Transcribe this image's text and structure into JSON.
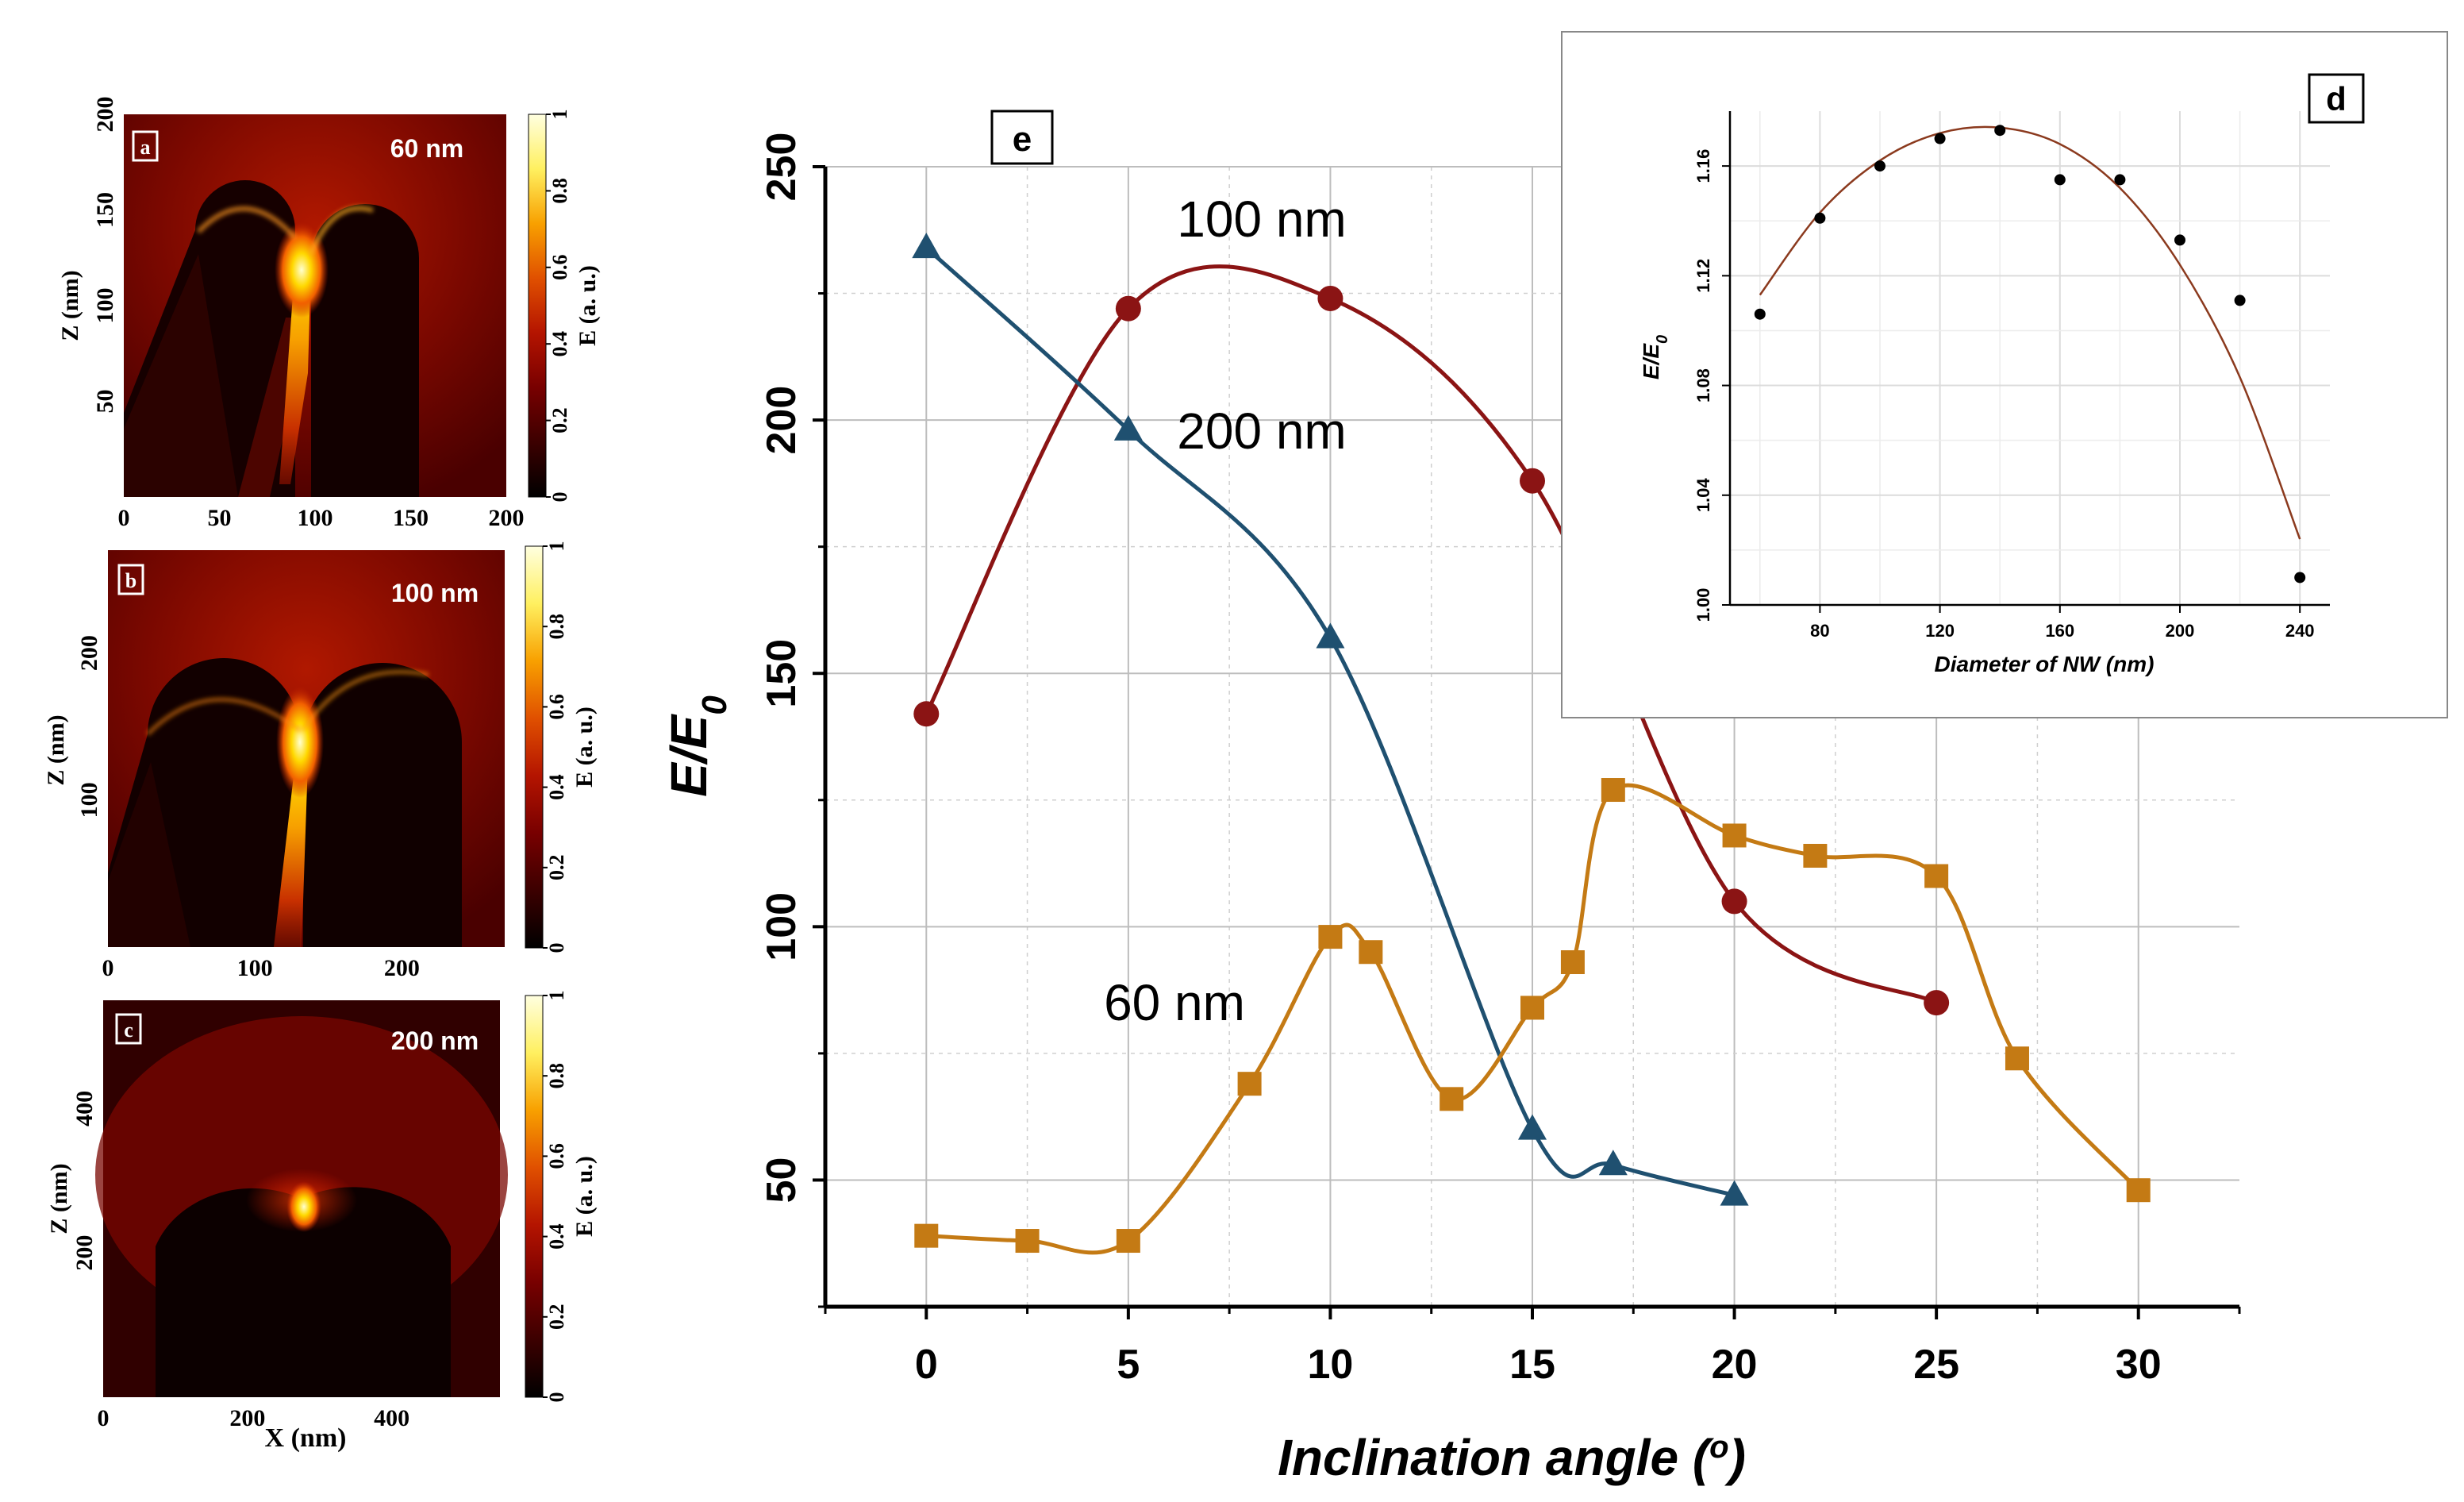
{
  "figure": {
    "panels": [
      {
        "id": "a",
        "label": "a",
        "size_label": "60 nm",
        "x_ticks": [
          "0",
          "50",
          "100",
          "150",
          "200"
        ],
        "z_ticks": [
          "50",
          "100",
          "150",
          "200"
        ],
        "z_label": "Z (nm)",
        "colorbar_ticks": [
          "0",
          "0.2",
          "0.4",
          "0.6",
          "0.8",
          "1"
        ],
        "colorbar_label": "E (a. u.)"
      },
      {
        "id": "b",
        "label": "b",
        "size_label": "100 nm",
        "x_ticks": [
          "0",
          "100",
          "200"
        ],
        "z_ticks": [
          "100",
          "200"
        ],
        "z_label": "Z (nm)",
        "colorbar_ticks": [
          "0",
          "0.2",
          "0.4",
          "0.6",
          "0.8",
          "1"
        ],
        "colorbar_label": "E (a. u.)"
      },
      {
        "id": "c",
        "label": "c",
        "size_label": "200 nm",
        "x_ticks": [
          "0",
          "200",
          "400"
        ],
        "z_ticks": [
          "200",
          "400"
        ],
        "z_label": "Z (nm)",
        "colorbar_ticks": [
          "0",
          "0.2",
          "0.4",
          "0.6",
          "0.8",
          "1"
        ],
        "colorbar_label": "E (a. u.)",
        "x_label": "X (nm)"
      }
    ],
    "colormap": {
      "stops": [
        "#000000",
        "#3c0000",
        "#780000",
        "#b41400",
        "#e05000",
        "#f8a000",
        "#fff060",
        "#ffffe0"
      ]
    }
  },
  "chart_data": [
    {
      "panel": "e",
      "type": "line",
      "panel_label": "e",
      "title": "",
      "xlabel": "Inclination angle (o)",
      "xlabel_main": "Inclination angle (",
      "xlabel_sup": "o",
      "xlabel_end": ")",
      "ylabel": "E/E0",
      "ylabel_main": "E/E",
      "ylabel_sub": "0",
      "xlim": [
        -2.5,
        32.5
      ],
      "ylim": [
        25,
        250
      ],
      "xticks": [
        0,
        5,
        10,
        15,
        20,
        25,
        30
      ],
      "yticks": [
        50,
        100,
        150,
        200,
        250
      ],
      "grid": true,
      "series": [
        {
          "name": "100 nm",
          "label": "100 nm",
          "marker": "circle",
          "color": "#8b1414",
          "x": [
            0,
            5,
            10,
            15,
            20,
            25
          ],
          "y": [
            142,
            222,
            224,
            188,
            105,
            85
          ]
        },
        {
          "name": "200 nm",
          "label": "200 nm",
          "marker": "triangle",
          "color": "#1f5070",
          "x": [
            0,
            5,
            10,
            15,
            17,
            20
          ],
          "y": [
            234,
            198,
            157,
            60,
            53,
            47
          ]
        },
        {
          "name": "60 nm",
          "label": "60 nm",
          "marker": "square",
          "color": "#c47a14",
          "x": [
            0,
            2.5,
            5,
            8,
            10,
            11,
            13,
            15,
            16,
            17,
            20,
            22,
            25,
            27,
            30
          ],
          "y": [
            39,
            38,
            38,
            69,
            98,
            95,
            66,
            84,
            93,
            127,
            118,
            114,
            110,
            74,
            48
          ]
        }
      ]
    },
    {
      "panel": "d",
      "type": "scatter",
      "panel_label": "d",
      "title": "",
      "xlabel": "Diameter of NW (nm)",
      "ylabel": "E/E0",
      "ylabel_main": "E/E",
      "ylabel_sub": "0",
      "xlim": [
        50,
        250
      ],
      "ylim": [
        1.0,
        1.18
      ],
      "xticks": [
        80,
        120,
        160,
        200,
        240
      ],
      "yticks": [
        1.0,
        1.04,
        1.08,
        1.12,
        1.16
      ],
      "ytick_labels": [
        "1.00",
        "1.04",
        "1.08",
        "1.12",
        "1.16"
      ],
      "grid": true,
      "series": [
        {
          "name": "data",
          "x": [
            60,
            80,
            100,
            120,
            140,
            160,
            180,
            200,
            220,
            240
          ],
          "y": [
            1.106,
            1.141,
            1.16,
            1.17,
            1.173,
            1.155,
            1.155,
            1.133,
            1.111,
            1.01
          ]
        }
      ],
      "fit": {
        "name": "fit",
        "color": "#8b3a1e",
        "x": [
          60,
          80,
          100,
          120,
          140,
          160,
          180,
          200,
          220,
          240
        ],
        "y": [
          1.113,
          1.143,
          1.162,
          1.172,
          1.174,
          1.168,
          1.152,
          1.124,
          1.083,
          1.024
        ]
      }
    }
  ]
}
